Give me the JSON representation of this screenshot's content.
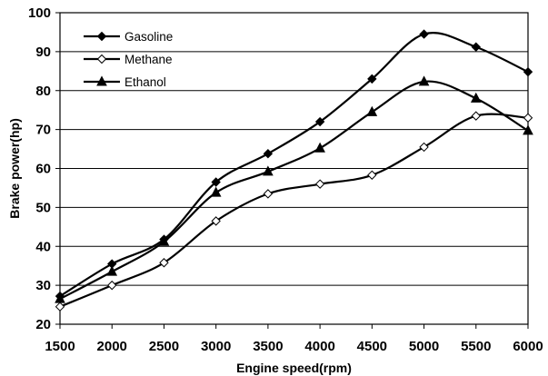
{
  "chart_data": {
    "type": "line",
    "xlabel": "Engine speed(rpm)",
    "ylabel": "Brake power(hp)",
    "x": [
      1500,
      2000,
      2500,
      3000,
      3500,
      4000,
      4500,
      5000,
      5500,
      6000
    ],
    "xlim": [
      1500,
      6000
    ],
    "ylim": [
      20,
      100
    ],
    "x_ticks": [
      "1500",
      "2000",
      "2500",
      "3000",
      "3500",
      "4000",
      "4500",
      "5000",
      "5500",
      "6000"
    ],
    "y_ticks": [
      "20",
      "30",
      "40",
      "50",
      "60",
      "70",
      "80",
      "90",
      "100"
    ],
    "grid": "horizontal",
    "legend_position": "top-left",
    "series": [
      {
        "name": "Gasoline",
        "marker": "filled-diamond",
        "values": [
          27.2,
          35.5,
          41.8,
          56.5,
          63.8,
          72.0,
          83.0,
          94.5,
          91.2,
          84.8
        ]
      },
      {
        "name": "Methane",
        "marker": "open-diamond",
        "values": [
          24.5,
          30.0,
          35.8,
          46.5,
          53.5,
          56.0,
          58.3,
          65.5,
          73.5,
          73.0
        ]
      },
      {
        "name": "Ethanol",
        "marker": "filled-triangle",
        "values": [
          26.5,
          33.5,
          41.2,
          53.8,
          59.2,
          65.2,
          74.5,
          82.3,
          78.0,
          69.7
        ]
      }
    ]
  }
}
